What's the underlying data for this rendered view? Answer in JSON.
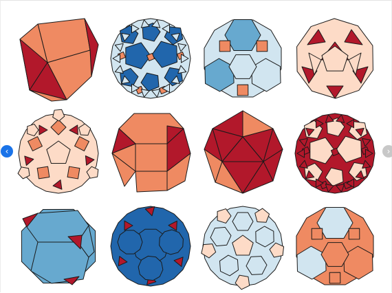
{
  "carousel": {
    "prev_glyph": "‹",
    "next_glyph": "›",
    "prev_icon": "chevron-left-icon",
    "next_icon": "chevron-right-icon",
    "prev_color": "#1a73e8",
    "next_color": "#c8c8c8"
  },
  "palette": {
    "orange": "#ef8a62",
    "peach": "#fddbc7",
    "crimson": "#b2182b",
    "blue_mid": "#67a9cf",
    "blue_light": "#d1e5f0",
    "blue_dark": "#2166ac",
    "edge": "#1a1a1a"
  },
  "thumbnails": [
    {
      "shape": "cuboctahedron",
      "colors": [
        "orange",
        "crimson"
      ]
    },
    {
      "shape": "snub-dodecahedron",
      "colors": [
        "blue_dark",
        "blue_light",
        "orange"
      ]
    },
    {
      "shape": "truncated-octahedron",
      "colors": [
        "blue_mid",
        "blue_light",
        "orange"
      ]
    },
    {
      "shape": "icosidodecahedron",
      "colors": [
        "peach",
        "crimson"
      ]
    },
    {
      "shape": "rhombicosidodecahedron",
      "colors": [
        "peach",
        "orange",
        "crimson"
      ]
    },
    {
      "shape": "rhombicuboctahedron",
      "colors": [
        "orange",
        "crimson"
      ]
    },
    {
      "shape": "icosahedron",
      "colors": [
        "crimson",
        "orange"
      ]
    },
    {
      "shape": "snub-dodecahedron",
      "colors": [
        "peach",
        "crimson"
      ]
    },
    {
      "shape": "truncated-cube",
      "colors": [
        "blue_mid",
        "crimson"
      ]
    },
    {
      "shape": "truncated-dodecahedron",
      "colors": [
        "blue_dark",
        "crimson"
      ]
    },
    {
      "shape": "truncated-icosahedron",
      "colors": [
        "blue_light",
        "peach"
      ]
    },
    {
      "shape": "truncated-octahedron",
      "colors": [
        "blue_light",
        "orange"
      ]
    }
  ]
}
